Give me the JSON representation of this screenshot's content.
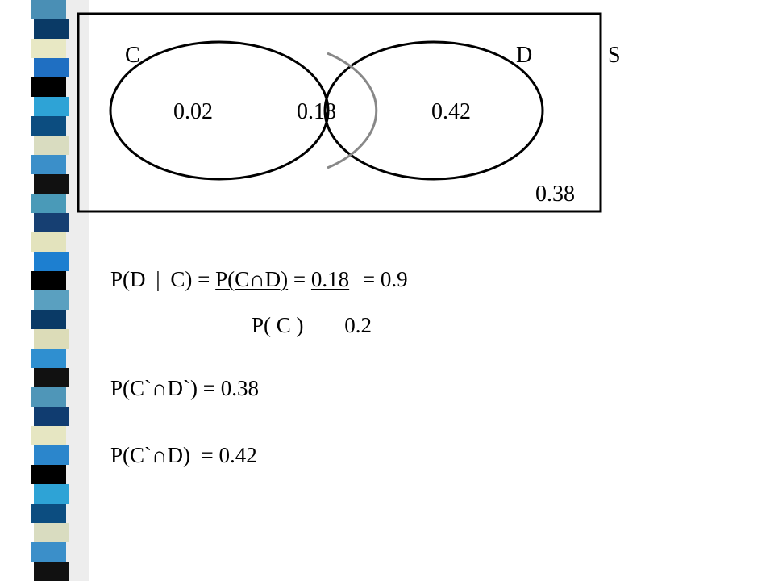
{
  "strip": {
    "colors": [
      "#4a8fb5",
      "#0a3a66",
      "#e8e8c4",
      "#1f6fc2",
      "#000000",
      "#2ea3d6",
      "#0c4d80",
      "#d9dcc0",
      "#3b8fc9",
      "#111111",
      "#4a9ab8",
      "#163f72",
      "#e3e3bd",
      "#1d7fd0",
      "#000000",
      "#5aa0c0",
      "#0a3a66",
      "#dcdcb8",
      "#2f8fd0",
      "#111111",
      "#4f96b8",
      "#103c70",
      "#e6e6c2",
      "#2b86cc",
      "#000000",
      "#2ea3d6",
      "#0c4d80",
      "#d9dcc0",
      "#3b8fc9",
      "#111111"
    ]
  },
  "venn": {
    "set_c": "C",
    "set_d": "D",
    "universe": "S",
    "only_c": "0.02",
    "intersection": "0.18",
    "only_d": "0.42",
    "outside": "0.38"
  },
  "formulas": {
    "cond_lhs": "P(D",
    "cond_bar": "|",
    "cond_mid": "C) =",
    "cond_num": "P(C∩D)",
    "cond_eq": "=",
    "cond_num_val": "0.18",
    "cond_result": "= 0.9",
    "cond_den": "P( C )",
    "cond_den_val": "0.2",
    "line3": "P(C`∩D`) = 0.38",
    "line4": "P(C`∩D)  = 0.42"
  }
}
